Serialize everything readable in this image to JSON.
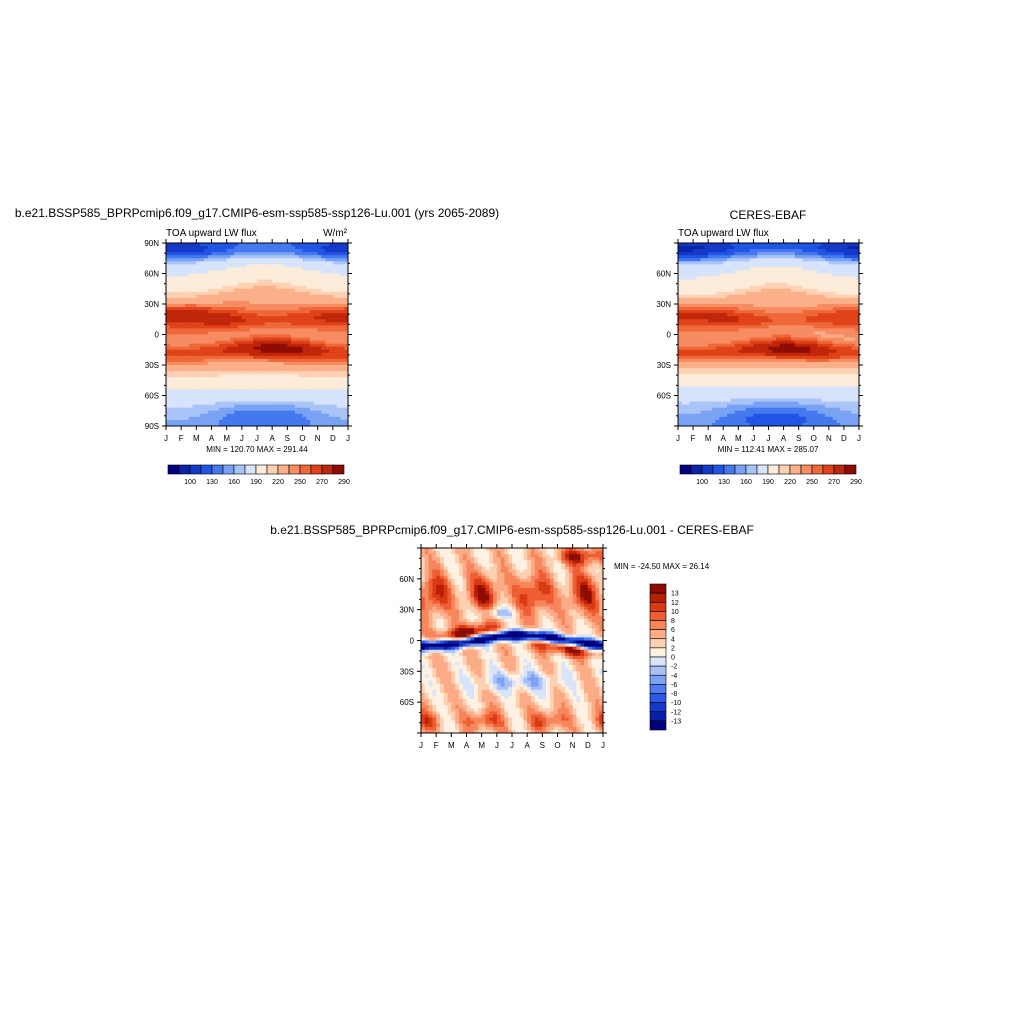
{
  "colors": {
    "abs_levels": [
      "#00007f",
      "#0a23a6",
      "#1438c8",
      "#2155e6",
      "#4478ee",
      "#7aa2f4",
      "#a9c4f8",
      "#d6e3fb",
      "#fdecd9",
      "#fcd1b4",
      "#fbb08a",
      "#f78c62",
      "#f06839",
      "#e04318",
      "#c0260a",
      "#8e0c03"
    ],
    "diff_levels": [
      "#00007f",
      "#0b1fa6",
      "#1438c8",
      "#2a58e8",
      "#4f7cef",
      "#7ea2f3",
      "#a9c1f7",
      "#d8e4fa",
      "#fff2e2",
      "#fdd0b2",
      "#fbac86",
      "#f7865d",
      "#ef5d33",
      "#d93a12",
      "#b71f06",
      "#8e0c03"
    ]
  },
  "chart_data": [
    {
      "type": "heatmap",
      "title": "b.e21.BSSP585_BPRPcmip6.f09_g17.CMIP6-esm-ssp585-ssp126-Lu.001 (yrs 2065-2089)",
      "subtitle_left": "TOA upward LW flux",
      "units": "W/m²",
      "x_tick_labels": [
        "J",
        "F",
        "M",
        "A",
        "M",
        "J",
        "J",
        "A",
        "S",
        "O",
        "N",
        "D",
        "J"
      ],
      "y_tick_labels": [
        "90N",
        "60N",
        "30N",
        "0",
        "30S",
        "60S",
        "90S"
      ],
      "ylim": [
        -90,
        90
      ],
      "stats": "MIN = 120.70 MAX = 291.44",
      "min": 120.7,
      "max": 291.44,
      "colorbar_labels": [
        "100",
        "130",
        "160",
        "190",
        "220",
        "250",
        "270",
        "290"
      ],
      "colorbar_orientation": "horizontal"
    },
    {
      "type": "heatmap",
      "title": "CERES-EBAF",
      "subtitle_left": "TOA upward LW flux",
      "x_tick_labels": [
        "J",
        "F",
        "M",
        "A",
        "M",
        "J",
        "J",
        "A",
        "S",
        "O",
        "N",
        "D",
        "J"
      ],
      "y_tick_labels": [
        "60N",
        "30N",
        "0",
        "30S",
        "60S"
      ],
      "ylim": [
        -90,
        90
      ],
      "stats": "MIN = 112.41 MAX = 285.07",
      "min": 112.41,
      "max": 285.07,
      "colorbar_labels": [
        "100",
        "130",
        "160",
        "190",
        "220",
        "250",
        "270",
        "290"
      ],
      "colorbar_orientation": "horizontal"
    },
    {
      "type": "heatmap",
      "title": "b.e21.BSSP585_BPRPcmip6.f09_g17.CMIP6-esm-ssp585-ssp126-Lu.001 - CERES-EBAF",
      "x_tick_labels": [
        "J",
        "F",
        "M",
        "A",
        "M",
        "J",
        "J",
        "A",
        "S",
        "O",
        "N",
        "D",
        "J"
      ],
      "y_tick_labels": [
        "60N",
        "30N",
        "0",
        "30S",
        "60S"
      ],
      "ylim": [
        -90,
        90
      ],
      "stats": "MIN = -24.50 MAX =  26.14",
      "min": -24.5,
      "max": 26.14,
      "colorbar_labels": [
        "13",
        "12",
        "10",
        "8",
        "6",
        "4",
        "2",
        "0",
        "-2",
        "-4",
        "-6",
        "-8",
        "-10",
        "-12",
        "-13"
      ],
      "colorbar_orientation": "vertical"
    }
  ]
}
